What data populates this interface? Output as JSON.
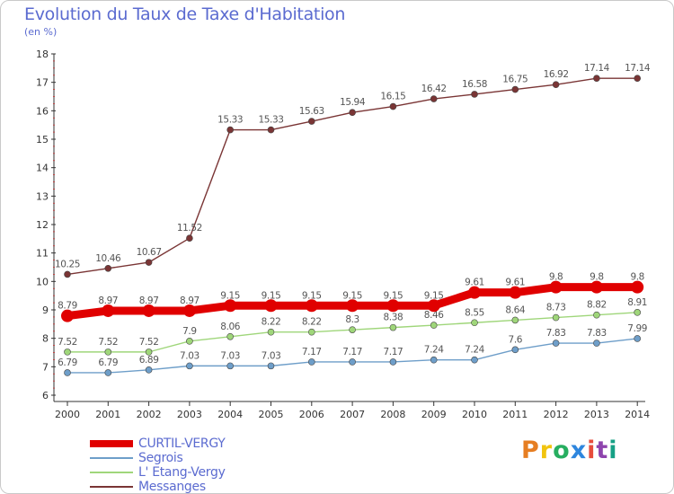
{
  "title": "Evolution du Taux de Taxe d'Habitation",
  "subtitle": "(en %)",
  "chart_data": {
    "type": "line",
    "categories": [
      "2000",
      "2001",
      "2002",
      "2003",
      "2004",
      "2005",
      "2006",
      "2007",
      "2008",
      "2009",
      "2010",
      "2011",
      "2012",
      "2013",
      "2014"
    ],
    "ylim": [
      6,
      18
    ],
    "yticks": [
      6,
      7,
      8,
      9,
      10,
      11,
      12,
      13,
      14,
      15,
      16,
      17,
      18
    ],
    "grid": false,
    "legend_position": "bottom-left",
    "series": [
      {
        "name": "CURTIL-VERGY",
        "color": "#e00000",
        "values": [
          8.79,
          8.97,
          8.97,
          8.97,
          9.15,
          9.15,
          9.15,
          9.15,
          9.15,
          9.15,
          9.61,
          9.61,
          9.8,
          9.8,
          9.8
        ],
        "labels": [
          "8.79",
          "8.97",
          "8.97",
          "8.97",
          "9.15",
          "9.15",
          "9.15",
          "9.15",
          "9.15",
          "9.15",
          "9.61",
          "9.61",
          "9.8",
          "9.8",
          "9.8"
        ]
      },
      {
        "name": "Segrois",
        "color": "#6e9ec9",
        "values": [
          6.79,
          6.79,
          6.89,
          7.03,
          7.03,
          7.03,
          7.17,
          7.17,
          7.17,
          7.24,
          7.24,
          7.6,
          7.83,
          7.83,
          7.99
        ],
        "labels": [
          "6.79",
          "6.79",
          "6.89",
          "7.03",
          "7.03",
          "7.03",
          "7.17",
          "7.17",
          "7.17",
          "7.24",
          "7.24",
          "7.6",
          "7.83",
          "7.83",
          "7.99"
        ]
      },
      {
        "name": "L' Etang-Vergy",
        "color": "#9fd67a",
        "values": [
          7.52,
          7.52,
          7.52,
          7.9,
          8.06,
          8.22,
          8.22,
          8.3,
          8.38,
          8.46,
          8.55,
          8.64,
          8.73,
          8.82,
          8.91
        ],
        "labels": [
          "7.52",
          "7.52",
          "7.52",
          "7.9",
          "8.06",
          "8.22",
          "8.22",
          "8.3",
          "8.38",
          "8.46",
          "8.55",
          "8.64",
          "8.73",
          "8.82",
          "8.91"
        ]
      },
      {
        "name": "Messanges",
        "color": "#7a3535",
        "values": [
          10.25,
          10.46,
          10.67,
          11.52,
          15.33,
          15.33,
          15.63,
          15.94,
          16.15,
          16.42,
          16.58,
          16.75,
          16.92,
          17.14,
          17.14
        ],
        "labels": [
          "10.25",
          "10.46",
          "10.67",
          "11.52",
          "15.33",
          "15.33",
          "15.63",
          "15.94",
          "16.15",
          "16.42",
          "16.58",
          "16.75",
          "16.92",
          "17.14",
          "17.14"
        ]
      }
    ]
  },
  "logo": {
    "text": "Proxiti",
    "colors": [
      "#e67e22",
      "#f1c40f",
      "#27ae60",
      "#2e86de",
      "#e74c3c",
      "#8e44ad",
      "#16a085"
    ]
  }
}
